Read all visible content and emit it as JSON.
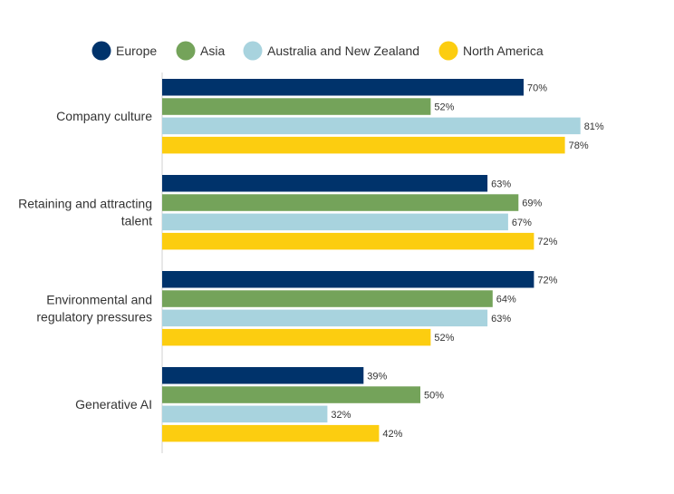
{
  "chart_data": {
    "type": "bar",
    "orientation": "horizontal",
    "categories": [
      [
        "Company culture"
      ],
      [
        "Retaining and attracting",
        "talent"
      ],
      [
        "Environmental and",
        "regulatory pressures"
      ],
      [
        "Generative AI"
      ]
    ],
    "series": [
      {
        "name": "Europe",
        "color": "#00336b",
        "values": [
          70,
          63,
          72,
          39
        ]
      },
      {
        "name": "Asia",
        "color": "#74a35a",
        "values": [
          52,
          69,
          64,
          50
        ]
      },
      {
        "name": "Australia and New Zealand",
        "color": "#a8d3de",
        "values": [
          81,
          67,
          63,
          32
        ]
      },
      {
        "name": "North America",
        "color": "#fccd10",
        "values": [
          78,
          72,
          52,
          42
        ]
      }
    ],
    "value_suffix": "%",
    "xlim": [
      0,
      100
    ],
    "grid": false,
    "legend_position": "top"
  }
}
